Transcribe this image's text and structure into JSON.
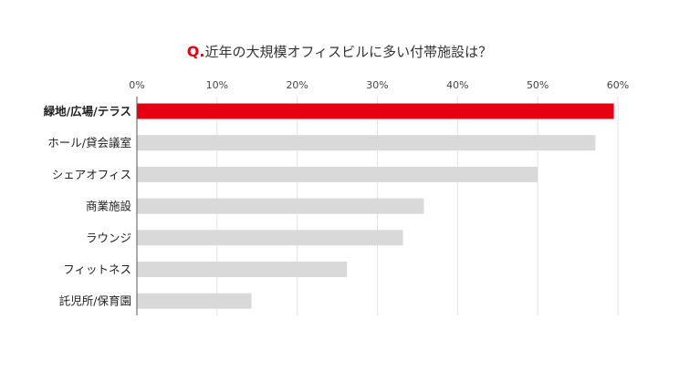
{
  "title": {
    "prefix": "Q.",
    "text": "近年の大規模オフィスビルに多い付帯施設は？"
  },
  "chart_data": {
    "type": "bar",
    "orientation": "horizontal",
    "categories": [
      "緑地/広場/テラス",
      "ホール/貸会議室",
      "シェアオフィス",
      "商業施設",
      "ラウンジ",
      "フィットネス",
      "託児所/保育園"
    ],
    "values": [
      59.5,
      57.2,
      50.0,
      35.8,
      33.2,
      26.2,
      14.3
    ],
    "x_ticks": [
      "0%",
      "10%",
      "20%",
      "30%",
      "40%",
      "50%",
      "60%"
    ],
    "x_tick_values": [
      0,
      10,
      20,
      30,
      40,
      50,
      60
    ],
    "xlim": [
      0,
      60
    ],
    "unit": "%",
    "grid": true,
    "highlight_index": 0,
    "colors": {
      "highlight": "#e60012",
      "bar": "#d9d9d9",
      "grid": "#e3e3e3",
      "axis": "#555555",
      "label": "#222222"
    }
  }
}
